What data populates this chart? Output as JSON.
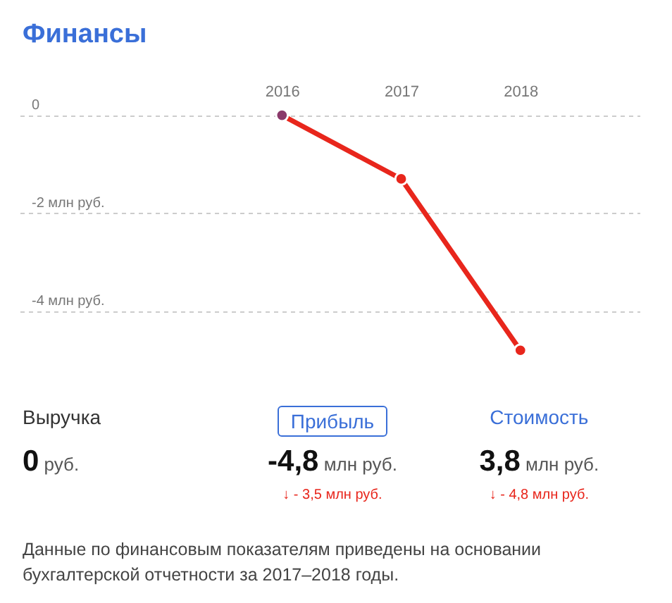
{
  "chart_data": {
    "type": "line",
    "title": "Финансы",
    "x": [
      2016,
      2017,
      2018
    ],
    "series": [
      {
        "color": "#e8261c",
        "colors": [
          "#8b3a6b",
          "#e8261c",
          "#e8261c"
        ],
        "values": [
          0,
          -1.3,
          -4.8
        ]
      }
    ],
    "xlim": [
      2013.8,
      2019
    ],
    "xticks": [
      2016,
      2017,
      2018
    ],
    "ylim": [
      -5.3,
      0.8
    ],
    "yticks": [
      {
        "value": 0,
        "label": "0"
      },
      {
        "value": -2,
        "label": "-2 млн руб."
      },
      {
        "value": -4,
        "label": "-4 млн руб."
      }
    ],
    "grid": "y",
    "marker": "circle",
    "line_style": "solid",
    "annotations": [
      "Выручка",
      "Прибыль",
      "Стоимость",
      "0 руб.",
      "-4,8 млн руб.",
      "3,8 млн руб.",
      "↓ - 3,5 млн руб.",
      "↓ - 4,8 млн руб.",
      "Данные по финансовым показателям приведены на основании бухгалтерской отчетности за 2017–2018 годы."
    ]
  }
}
